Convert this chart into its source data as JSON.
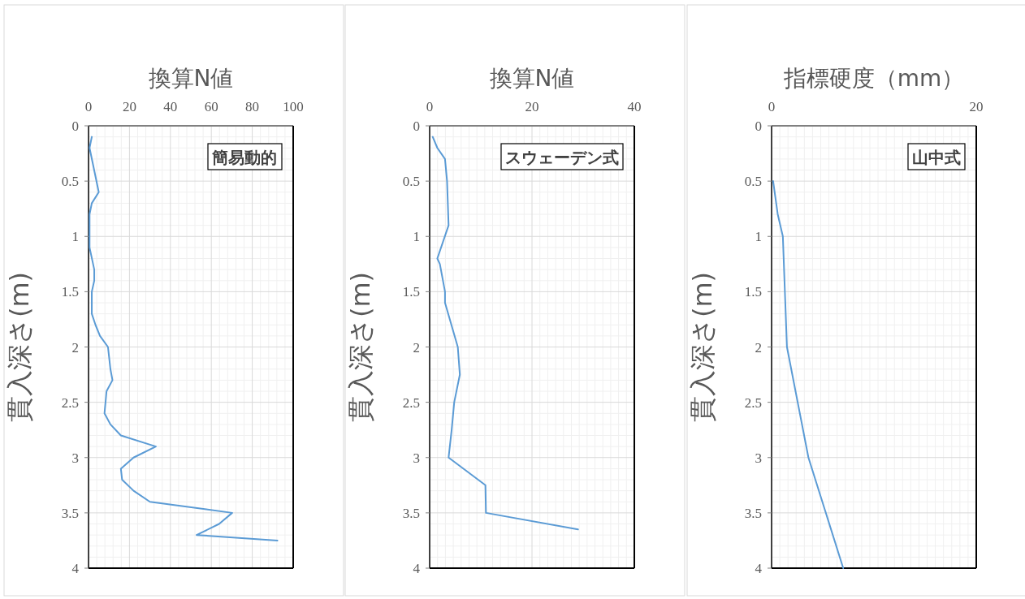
{
  "chart_data": [
    {
      "type": "line",
      "title": "換算N値",
      "ylabel": "貫入深さ(m)",
      "annotations": [
        "簡易動的"
      ],
      "xlim": [
        0,
        100
      ],
      "xticks": [
        0,
        20,
        40,
        60,
        80,
        100
      ],
      "ylim": [
        4,
        0
      ],
      "yticks": [
        0,
        0.5,
        1,
        1.5,
        2,
        2.5,
        3,
        3.5,
        4
      ],
      "grid": true,
      "series": [
        {
          "color": "#5b9bd5",
          "x": [
            1.6,
            0.5,
            5,
            1.6,
            0.5,
            0.5,
            2.8,
            2.8,
            1.6,
            1.6,
            3.4,
            5.6,
            9.5,
            10.7,
            11.7,
            8.8,
            7.8,
            10.7,
            15.8,
            32.9,
            22,
            15.8,
            16.4,
            22,
            30,
            70.2,
            63.8,
            52.8,
            92.3
          ],
          "values": [
            0.1,
            0.2,
            0.6,
            0.7,
            0.8,
            1.1,
            1.3,
            1.4,
            1.5,
            1.7,
            1.8,
            1.9,
            2.0,
            2.2,
            2.3,
            2.4,
            2.6,
            2.7,
            2.8,
            2.9,
            3.0,
            3.1,
            3.2,
            3.3,
            3.4,
            3.5,
            3.6,
            3.7,
            3.75
          ]
        }
      ]
    },
    {
      "type": "line",
      "title": "換算N値",
      "ylabel": "貫入深さ(m)",
      "annotations": [
        "スウェーデン式"
      ],
      "xlim": [
        0,
        40
      ],
      "xticks": [
        0,
        20,
        40
      ],
      "ylim": [
        4,
        0
      ],
      "yticks": [
        0,
        0.5,
        1,
        1.5,
        2,
        2.5,
        3,
        3.5,
        4
      ],
      "grid": true,
      "series": [
        {
          "color": "#5b9bd5",
          "x": [
            0.6,
            1.5,
            3.0,
            3.4,
            3.7,
            1.5,
            2.0,
            3.0,
            3.0,
            5.5,
            5.9,
            4.8,
            4.3,
            3.7,
            10.9,
            11.0,
            29
          ],
          "values": [
            0.1,
            0.2,
            0.3,
            0.5,
            0.9,
            1.2,
            1.25,
            1.5,
            1.6,
            2.0,
            2.25,
            2.5,
            2.75,
            3.0,
            3.25,
            3.5,
            3.65
          ]
        }
      ]
    },
    {
      "type": "line",
      "title": "指標硬度（mm）",
      "ylabel": "貫入深さ(m)",
      "annotations": [
        "山中式"
      ],
      "xlim": [
        0,
        20
      ],
      "xticks": [
        0,
        20
      ],
      "ylim": [
        4,
        0
      ],
      "yticks": [
        0,
        0.5,
        1,
        1.5,
        2,
        2.5,
        3,
        3.5,
        4
      ],
      "grid": true,
      "series": [
        {
          "color": "#5b9bd5",
          "x": [
            0.15,
            0.6,
            1.1,
            1.5,
            3.6,
            7.0
          ],
          "values": [
            0.5,
            0.8,
            1.0,
            2.0,
            3.0,
            4.0
          ]
        }
      ]
    }
  ]
}
